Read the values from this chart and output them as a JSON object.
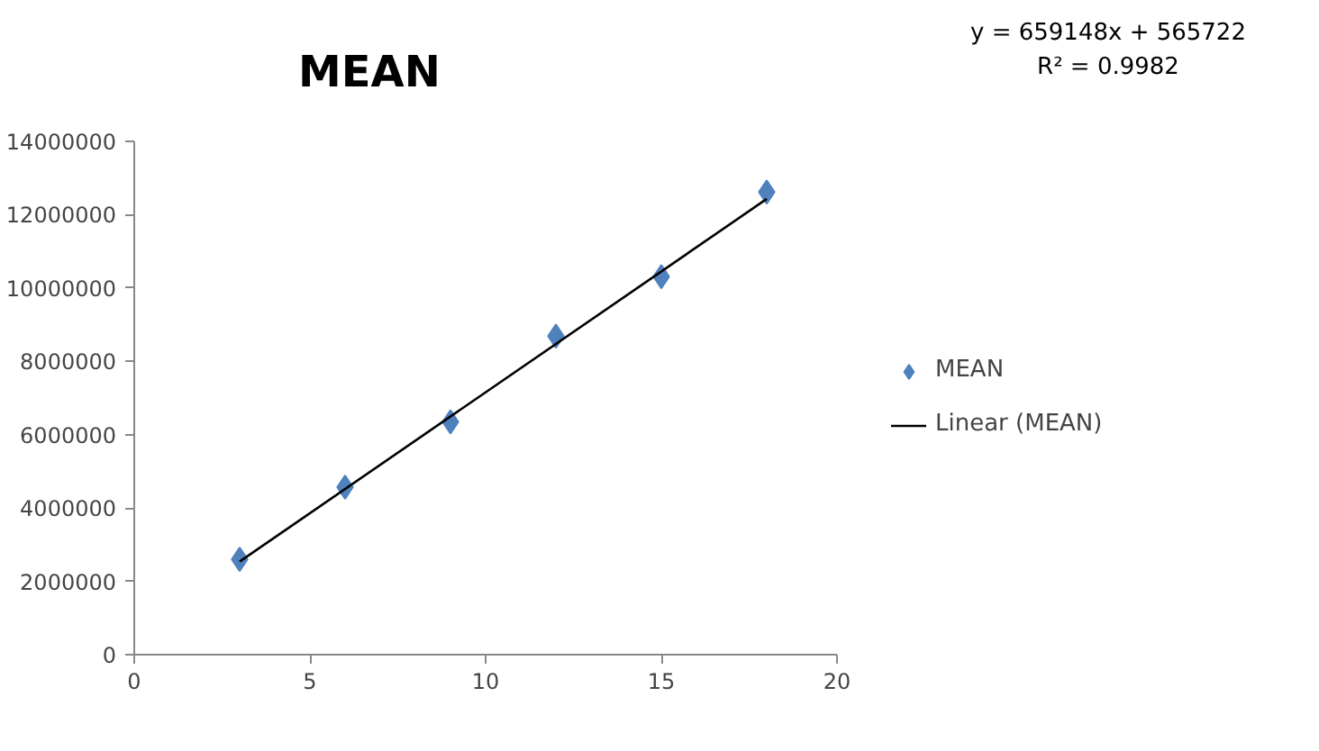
{
  "chart_data": {
    "type": "scatter",
    "title": "MEAN",
    "series": [
      {
        "name": "MEAN",
        "color": "#4f81bd",
        "marker": "diamond",
        "x": [
          3,
          6,
          9,
          12,
          15,
          18
        ],
        "values": [
          2600000,
          4570000,
          6350000,
          8690000,
          10310000,
          12620000
        ]
      },
      {
        "name": "Linear (MEAN)",
        "type": "line",
        "color": "#000000",
        "marker": "none",
        "line_style": "solid",
        "x": [
          3,
          18
        ],
        "values": [
          2540000,
          12430000
        ]
      }
    ],
    "annotations": [
      "y = 659148x + 565722",
      "R² = 0.9982"
    ],
    "xlim": [
      0,
      20
    ],
    "xticks": [
      0,
      5,
      10,
      15,
      20
    ],
    "ylim": [
      0,
      14000000
    ],
    "yticks": [
      0,
      2000000,
      4000000,
      6000000,
      8000000,
      10000000,
      12000000,
      14000000
    ],
    "grid": false,
    "legend": "right"
  }
}
